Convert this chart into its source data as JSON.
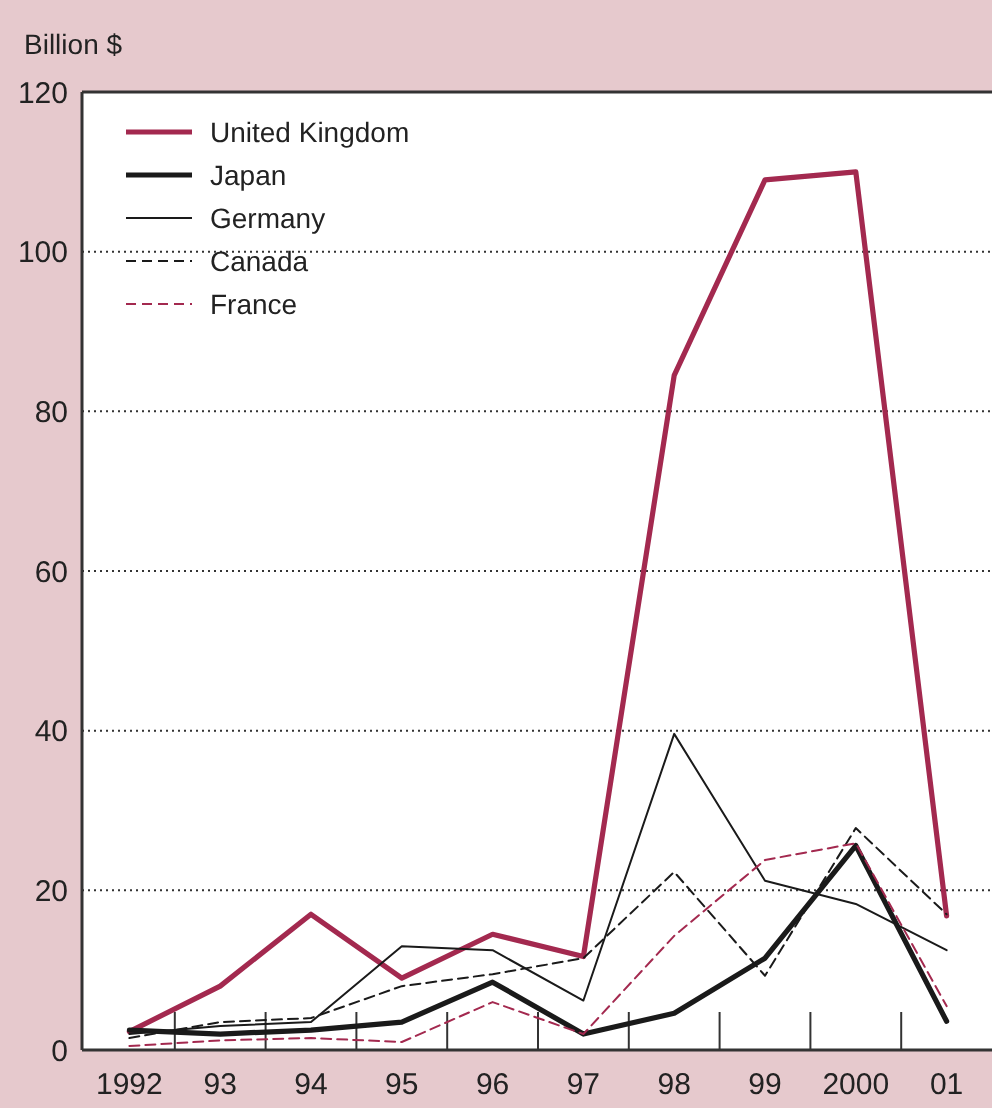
{
  "chart_data": {
    "type": "line",
    "ylabel": "Billion $",
    "categories": [
      "1992",
      "93",
      "94",
      "95",
      "96",
      "97",
      "98",
      "99",
      "2000",
      "01"
    ],
    "ylim": [
      0,
      120
    ],
    "yticks": [
      0,
      20,
      40,
      60,
      80,
      100,
      120
    ],
    "grid": "y",
    "legend": "top left",
    "marker": "none",
    "series": [
      {
        "name": "United Kingdom",
        "color": "#a3294f",
        "line_style": "solid",
        "values": [
          2.3,
          8,
          17,
          9,
          14.5,
          11.7,
          84.5,
          109,
          110,
          16.8
        ]
      },
      {
        "name": "Japan",
        "color": "#1a1a1a",
        "line_style": "solid",
        "values": [
          2.5,
          2,
          2.5,
          3.5,
          8.5,
          2,
          4.6,
          11.5,
          25.6,
          3.6
        ]
      },
      {
        "name": "Germany",
        "color": "#1a1a1a",
        "line_style": "solid",
        "values": [
          2,
          3,
          3.5,
          13,
          12.5,
          6.2,
          39.6,
          21.2,
          18.3,
          12.5
        ]
      },
      {
        "name": "Canada",
        "color": "#1a1a1a",
        "line_style": "dashed",
        "values": [
          1.5,
          3.5,
          4,
          8,
          9.5,
          11.5,
          22.3,
          9.3,
          27.8,
          17
        ]
      },
      {
        "name": "France",
        "color": "#a3294f",
        "line_style": "dashed",
        "values": [
          0.5,
          1.2,
          1.5,
          1,
          6,
          2,
          14.3,
          23.8,
          25.9,
          5.5
        ]
      }
    ]
  }
}
